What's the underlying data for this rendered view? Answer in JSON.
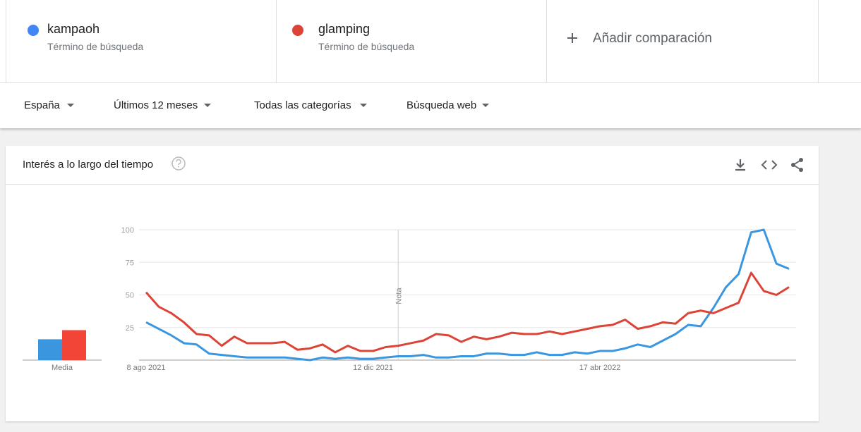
{
  "header": {
    "term_labels": [
      "Término de búsqueda",
      "Término de búsqueda"
    ],
    "add_comparison": "Añadir comparación"
  },
  "filters": [
    "España",
    "Últimos 12 meses",
    "Todas las categorías",
    "Búsqueda web"
  ],
  "card": {
    "title": "Interés a lo largo del tiempo"
  },
  "chart_data": {
    "type": "line",
    "categories": [
      "8 ago 2021",
      null,
      null,
      null,
      null,
      null,
      null,
      null,
      null,
      null,
      null,
      null,
      null,
      null,
      null,
      null,
      null,
      null,
      "12 dic 2021",
      null,
      null,
      null,
      null,
      null,
      null,
      null,
      null,
      null,
      null,
      null,
      null,
      null,
      null,
      null,
      null,
      null,
      "17 abr 2022",
      null,
      null,
      null,
      null,
      null,
      null,
      null,
      null,
      null,
      null,
      null,
      null,
      null,
      null,
      null
    ],
    "series": [
      {
        "name": "kampaoh",
        "color": "#4285f4",
        "line_color": "#3b96e0",
        "average": 16,
        "values": [
          29,
          24,
          19,
          13,
          12,
          5,
          4,
          3,
          2,
          2,
          2,
          2,
          1,
          0,
          2,
          1,
          2,
          1,
          1,
          2,
          3,
          3,
          4,
          2,
          2,
          3,
          3,
          5,
          5,
          4,
          4,
          6,
          4,
          4,
          6,
          5,
          7,
          7,
          9,
          12,
          10,
          15,
          20,
          27,
          26,
          40,
          56,
          66,
          98,
          100,
          74,
          70
        ]
      },
      {
        "name": "glamping",
        "color": "#db4437",
        "line_color": "#db4437",
        "average": 23,
        "values": [
          52,
          41,
          36,
          29,
          20,
          19,
          11,
          18,
          13,
          13,
          13,
          14,
          8,
          9,
          12,
          6,
          11,
          7,
          7,
          10,
          11,
          13,
          15,
          20,
          19,
          14,
          18,
          16,
          18,
          21,
          20,
          20,
          22,
          20,
          22,
          24,
          26,
          27,
          31,
          24,
          26,
          29,
          28,
          36,
          38,
          36,
          40,
          44,
          67,
          53,
          50,
          56
        ]
      }
    ],
    "average_label": "Media",
    "annotations": [
      {
        "text": "Nota",
        "index": 20
      }
    ],
    "ylim": [
      0,
      100
    ],
    "yticks": [
      25,
      50,
      75,
      100
    ],
    "grid": true
  }
}
